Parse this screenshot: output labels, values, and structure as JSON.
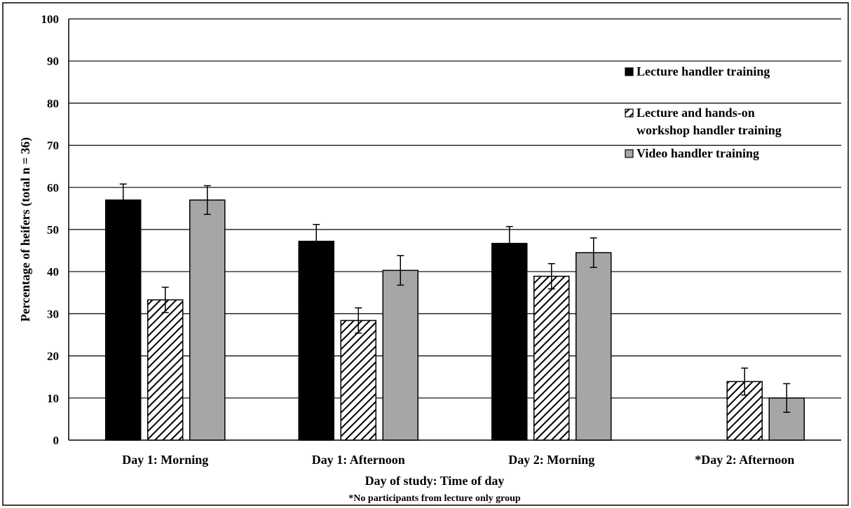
{
  "chart_data": {
    "type": "bar",
    "title": "",
    "xlabel": "Day of study: Time of day",
    "ylabel": "Percentage of heifers (total n = 36)",
    "footnote": "*No participants from lecture only group",
    "ylim": [
      0,
      100
    ],
    "yticks": [
      0,
      10,
      20,
      30,
      40,
      50,
      60,
      70,
      80,
      90,
      100
    ],
    "grid": true,
    "legend_position": "top-right",
    "categories": [
      "Day 1: Morning",
      "Day 1: Afternoon",
      "Day 2: Morning",
      "*Day 2: Afternoon"
    ],
    "series": [
      {
        "name": "Lecture handler training",
        "legend_lines": [
          "Lecture handler training"
        ],
        "style": "solid",
        "color": "#000000",
        "values": [
          57,
          47.2,
          46.7,
          null
        ],
        "errors": [
          3.8,
          4,
          4,
          null
        ]
      },
      {
        "name": "Lecture and hands-on workshop handler training",
        "legend_lines": [
          "Lecture and hands-on",
          "workshop handler training"
        ],
        "style": "hatched",
        "color": "#ffffff",
        "values": [
          33.3,
          28.4,
          38.9,
          13.9
        ],
        "errors": [
          3,
          3,
          3,
          3.2
        ]
      },
      {
        "name": "Video handler training",
        "legend_lines": [
          "Video handler training"
        ],
        "style": "solid",
        "color": "#a6a6a6",
        "values": [
          57,
          40.3,
          44.5,
          10
        ],
        "errors": [
          3.4,
          3.5,
          3.5,
          3.4
        ]
      }
    ]
  }
}
